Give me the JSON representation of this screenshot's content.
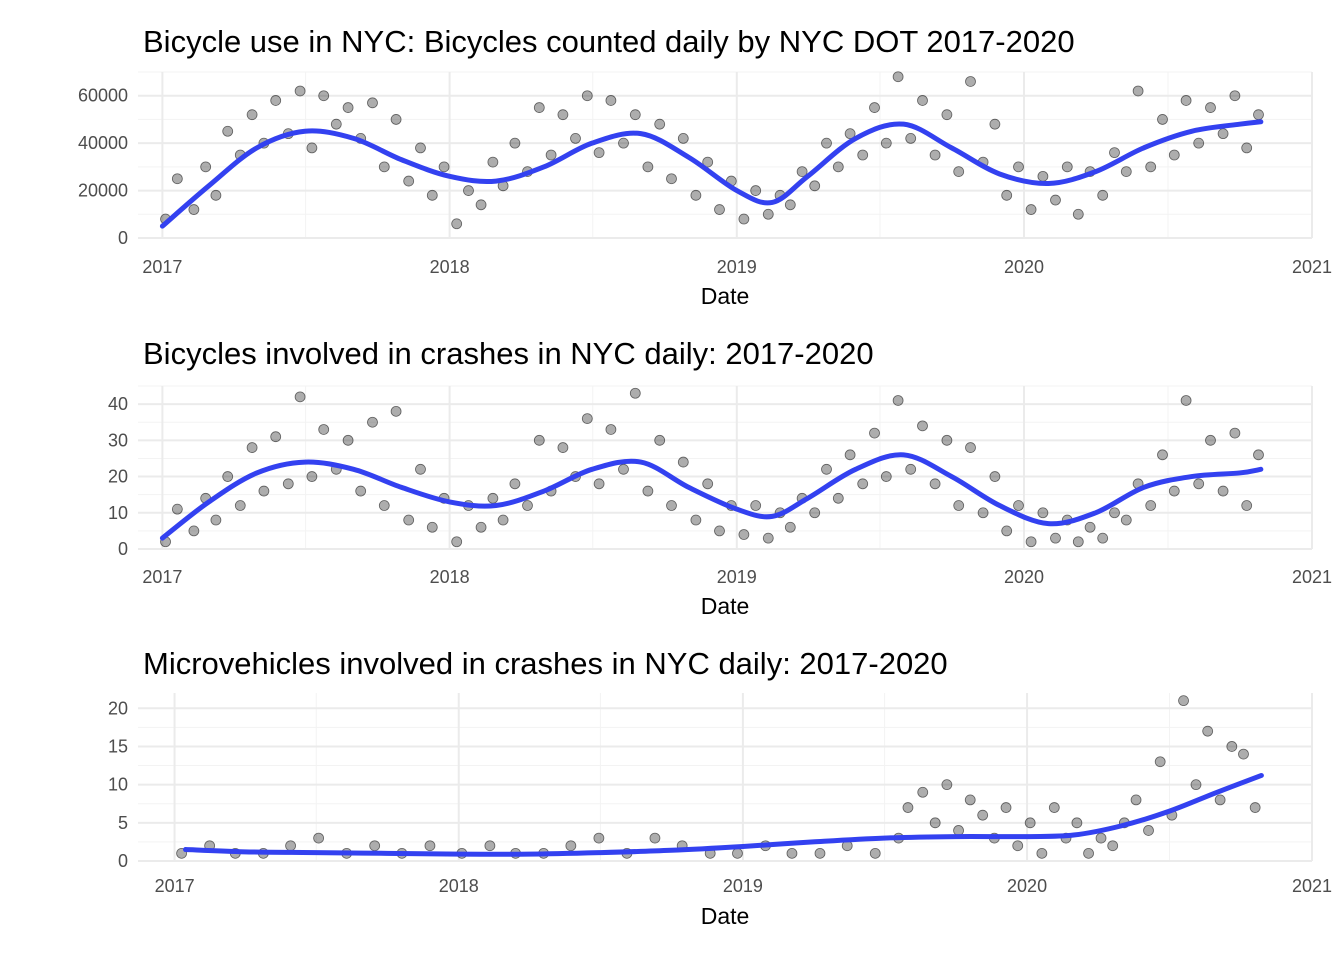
{
  "chart_data": [
    {
      "type": "scatter",
      "title": "Bicycle use in NYC: Bicycles counted daily by NYC DOT 2017-2020",
      "xlabel": "Date",
      "ylabel": "",
      "x_ticks": [
        "2017",
        "2018",
        "2019",
        "2020",
        "2021"
      ],
      "y_ticks": [
        "0",
        "20000",
        "40000",
        "60000"
      ],
      "xlim": [
        "2016-12-01",
        "2021-01-01"
      ],
      "ylim": [
        0,
        70000
      ],
      "point_color": "#000000",
      "smooth_color": "#3341f0",
      "series": [
        {
          "type": "smooth",
          "x": [
            "2017-01-01",
            "2017-03-01",
            "2017-05-01",
            "2017-07-01",
            "2017-09-01",
            "2017-11-01",
            "2018-01-01",
            "2018-03-01",
            "2018-05-01",
            "2018-07-01",
            "2018-09-01",
            "2018-11-01",
            "2019-01-01",
            "2019-02-15",
            "2019-04-01",
            "2019-06-01",
            "2019-08-01",
            "2019-10-01",
            "2019-12-01",
            "2020-02-01",
            "2020-04-01",
            "2020-06-01",
            "2020-08-01",
            "2020-10-01",
            "2020-10-28"
          ],
          "y": [
            5000,
            22000,
            38000,
            45000,
            42000,
            33000,
            26000,
            24000,
            30000,
            40000,
            44000,
            34000,
            20000,
            15000,
            26000,
            42000,
            48000,
            38000,
            27000,
            23000,
            28000,
            38000,
            45000,
            48000,
            49000
          ]
        },
        {
          "type": "scatter",
          "x": [
            "2017-01-05",
            "2017-01-20",
            "2017-02-10",
            "2017-02-25",
            "2017-03-10",
            "2017-03-25",
            "2017-04-10",
            "2017-04-25",
            "2017-05-10",
            "2017-05-25",
            "2017-06-10",
            "2017-06-25",
            "2017-07-10",
            "2017-07-25",
            "2017-08-10",
            "2017-08-25",
            "2017-09-10",
            "2017-09-25",
            "2017-10-10",
            "2017-10-25",
            "2017-11-10",
            "2017-11-25",
            "2017-12-10",
            "2017-12-25",
            "2018-01-10",
            "2018-01-25",
            "2018-02-10",
            "2018-02-25",
            "2018-03-10",
            "2018-03-25",
            "2018-04-10",
            "2018-04-25",
            "2018-05-10",
            "2018-05-25",
            "2018-06-10",
            "2018-06-25",
            "2018-07-10",
            "2018-07-25",
            "2018-08-10",
            "2018-08-25",
            "2018-09-10",
            "2018-09-25",
            "2018-10-10",
            "2018-10-25",
            "2018-11-10",
            "2018-11-25",
            "2018-12-10",
            "2018-12-25",
            "2019-01-10",
            "2019-01-25",
            "2019-02-10",
            "2019-02-25",
            "2019-03-10",
            "2019-03-25",
            "2019-04-10",
            "2019-04-25",
            "2019-05-10",
            "2019-05-25",
            "2019-06-10",
            "2019-06-25",
            "2019-07-10",
            "2019-07-25",
            "2019-08-10",
            "2019-08-25",
            "2019-09-10",
            "2019-09-25",
            "2019-10-10",
            "2019-10-25",
            "2019-11-10",
            "2019-11-25",
            "2019-12-10",
            "2019-12-25",
            "2020-01-10",
            "2020-01-25",
            "2020-02-10",
            "2020-02-25",
            "2020-03-10",
            "2020-03-25",
            "2020-04-10",
            "2020-04-25",
            "2020-05-10",
            "2020-05-25",
            "2020-06-10",
            "2020-06-25",
            "2020-07-10",
            "2020-07-25",
            "2020-08-10",
            "2020-08-25",
            "2020-09-10",
            "2020-09-25",
            "2020-10-10",
            "2020-10-25"
          ],
          "y": [
            8000,
            25000,
            12000,
            30000,
            18000,
            45000,
            35000,
            52000,
            40000,
            58000,
            44000,
            62000,
            38000,
            60000,
            48000,
            55000,
            42000,
            57000,
            30000,
            50000,
            24000,
            38000,
            18000,
            30000,
            6000,
            20000,
            14000,
            32000,
            22000,
            40000,
            28000,
            55000,
            35000,
            52000,
            42000,
            60000,
            36000,
            58000,
            40000,
            52000,
            30000,
            48000,
            25000,
            42000,
            18000,
            32000,
            12000,
            24000,
            8000,
            20000,
            10000,
            18000,
            14000,
            28000,
            22000,
            40000,
            30000,
            44000,
            35000,
            55000,
            40000,
            68000,
            42000,
            58000,
            35000,
            52000,
            28000,
            66000,
            32000,
            48000,
            18000,
            30000,
            12000,
            26000,
            16000,
            30000,
            10000,
            28000,
            18000,
            36000,
            28000,
            62000,
            30000,
            50000,
            35000,
            58000,
            40000,
            55000,
            44000,
            60000,
            38000,
            52000
          ]
        }
      ]
    },
    {
      "type": "scatter",
      "title": "Bicycles involved in crashes in NYC daily: 2017-2020",
      "xlabel": "Date",
      "ylabel": "",
      "x_ticks": [
        "2017",
        "2018",
        "2019",
        "2020",
        "2021"
      ],
      "y_ticks": [
        "0",
        "10",
        "20",
        "30",
        "40"
      ],
      "xlim": [
        "2016-12-01",
        "2021-01-01"
      ],
      "ylim": [
        0,
        45
      ],
      "point_color": "#000000",
      "smooth_color": "#3341f0",
      "series": [
        {
          "type": "smooth",
          "x": [
            "2017-01-01",
            "2017-03-01",
            "2017-05-01",
            "2017-07-01",
            "2017-09-01",
            "2017-11-01",
            "2018-01-01",
            "2018-03-01",
            "2018-05-01",
            "2018-07-01",
            "2018-09-01",
            "2018-11-01",
            "2019-01-01",
            "2019-02-15",
            "2019-04-01",
            "2019-06-01",
            "2019-08-01",
            "2019-10-01",
            "2019-12-01",
            "2020-02-01",
            "2020-04-01",
            "2020-06-01",
            "2020-08-01",
            "2020-10-01",
            "2020-10-28"
          ],
          "y": [
            3,
            13,
            21,
            24,
            22,
            17,
            13,
            12,
            16,
            22,
            24,
            17,
            11,
            9,
            14,
            22,
            26,
            20,
            12,
            7,
            10,
            17,
            20,
            21,
            22
          ]
        },
        {
          "type": "scatter",
          "x": [
            "2017-01-05",
            "2017-01-20",
            "2017-02-10",
            "2017-02-25",
            "2017-03-10",
            "2017-03-25",
            "2017-04-10",
            "2017-04-25",
            "2017-05-10",
            "2017-05-25",
            "2017-06-10",
            "2017-06-25",
            "2017-07-10",
            "2017-07-25",
            "2017-08-10",
            "2017-08-25",
            "2017-09-10",
            "2017-09-25",
            "2017-10-10",
            "2017-10-25",
            "2017-11-10",
            "2017-11-25",
            "2017-12-10",
            "2017-12-25",
            "2018-01-10",
            "2018-01-25",
            "2018-02-10",
            "2018-02-25",
            "2018-03-10",
            "2018-03-25",
            "2018-04-10",
            "2018-04-25",
            "2018-05-10",
            "2018-05-25",
            "2018-06-10",
            "2018-06-25",
            "2018-07-10",
            "2018-07-25",
            "2018-08-10",
            "2018-08-25",
            "2018-09-10",
            "2018-09-25",
            "2018-10-10",
            "2018-10-25",
            "2018-11-10",
            "2018-11-25",
            "2018-12-10",
            "2018-12-25",
            "2019-01-10",
            "2019-01-25",
            "2019-02-10",
            "2019-02-25",
            "2019-03-10",
            "2019-03-25",
            "2019-04-10",
            "2019-04-25",
            "2019-05-10",
            "2019-05-25",
            "2019-06-10",
            "2019-06-25",
            "2019-07-10",
            "2019-07-25",
            "2019-08-10",
            "2019-08-25",
            "2019-09-10",
            "2019-09-25",
            "2019-10-10",
            "2019-10-25",
            "2019-11-10",
            "2019-11-25",
            "2019-12-10",
            "2019-12-25",
            "2020-01-10",
            "2020-01-25",
            "2020-02-10",
            "2020-02-25",
            "2020-03-10",
            "2020-03-25",
            "2020-04-10",
            "2020-04-25",
            "2020-05-10",
            "2020-05-25",
            "2020-06-10",
            "2020-06-25",
            "2020-07-10",
            "2020-07-25",
            "2020-08-10",
            "2020-08-25",
            "2020-09-10",
            "2020-09-25",
            "2020-10-10",
            "2020-10-25"
          ],
          "y": [
            2,
            11,
            5,
            14,
            8,
            20,
            12,
            28,
            16,
            31,
            18,
            42,
            20,
            33,
            22,
            30,
            16,
            35,
            12,
            38,
            8,
            22,
            6,
            14,
            2,
            12,
            6,
            14,
            8,
            18,
            12,
            30,
            16,
            28,
            20,
            36,
            18,
            33,
            22,
            43,
            16,
            30,
            12,
            24,
            8,
            18,
            5,
            12,
            4,
            12,
            3,
            10,
            6,
            14,
            10,
            22,
            14,
            26,
            18,
            32,
            20,
            41,
            22,
            34,
            18,
            30,
            12,
            28,
            10,
            20,
            5,
            12,
            2,
            10,
            3,
            8,
            2,
            6,
            3,
            10,
            8,
            18,
            12,
            26,
            16,
            41,
            18,
            30,
            16,
            32,
            12,
            26
          ]
        }
      ]
    },
    {
      "type": "scatter",
      "title": "Microvehicles involved in crashes in NYC daily: 2017-2020",
      "xlabel": "Date",
      "ylabel": "",
      "x_ticks": [
        "2017",
        "2018",
        "2019",
        "2020",
        "2021"
      ],
      "y_ticks": [
        "0",
        "5",
        "10",
        "15",
        "20"
      ],
      "xlim": [
        "2016-11-15",
        "2021-01-01"
      ],
      "ylim": [
        0,
        22
      ],
      "point_color": "#000000",
      "smooth_color": "#3341f0",
      "series": [
        {
          "type": "smooth",
          "x": [
            "2017-01-15",
            "2017-04-01",
            "2017-07-01",
            "2017-10-01",
            "2018-01-01",
            "2018-04-01",
            "2018-07-01",
            "2018-10-01",
            "2019-01-01",
            "2019-04-01",
            "2019-07-01",
            "2019-10-01",
            "2020-01-01",
            "2020-03-01",
            "2020-05-01",
            "2020-07-01",
            "2020-09-01",
            "2020-10-28"
          ],
          "y": [
            1.5,
            1.2,
            1.1,
            1.0,
            0.9,
            0.9,
            1.1,
            1.4,
            1.9,
            2.5,
            3.0,
            3.2,
            3.2,
            3.4,
            4.6,
            6.5,
            9.0,
            11.2
          ]
        },
        {
          "type": "scatter",
          "x": [
            "2017-01-10",
            "2017-02-15",
            "2017-03-20",
            "2017-04-25",
            "2017-05-30",
            "2017-07-05",
            "2017-08-10",
            "2017-09-15",
            "2017-10-20",
            "2017-11-25",
            "2018-01-05",
            "2018-02-10",
            "2018-03-15",
            "2018-04-20",
            "2018-05-25",
            "2018-06-30",
            "2018-08-05",
            "2018-09-10",
            "2018-10-15",
            "2018-11-20",
            "2018-12-25",
            "2019-01-30",
            "2019-03-05",
            "2019-04-10",
            "2019-05-15",
            "2019-06-20",
            "2019-07-20",
            "2019-08-01",
            "2019-08-20",
            "2019-09-05",
            "2019-09-20",
            "2019-10-05",
            "2019-10-20",
            "2019-11-05",
            "2019-11-20",
            "2019-12-05",
            "2019-12-20",
            "2020-01-05",
            "2020-01-20",
            "2020-02-05",
            "2020-02-20",
            "2020-03-05",
            "2020-03-20",
            "2020-04-05",
            "2020-04-20",
            "2020-05-05",
            "2020-05-20",
            "2020-06-05",
            "2020-06-20",
            "2020-07-05",
            "2020-07-20",
            "2020-08-05",
            "2020-08-20",
            "2020-09-05",
            "2020-09-20",
            "2020-10-05",
            "2020-10-20"
          ],
          "y": [
            1,
            2,
            1,
            1,
            2,
            3,
            1,
            2,
            1,
            2,
            1,
            2,
            1,
            1,
            2,
            3,
            1,
            3,
            2,
            1,
            1,
            2,
            1,
            1,
            2,
            1,
            3,
            7,
            9,
            5,
            10,
            4,
            8,
            6,
            3,
            7,
            2,
            5,
            1,
            7,
            3,
            5,
            1,
            3,
            2,
            5,
            8,
            4,
            13,
            6,
            21,
            10,
            17,
            8,
            15,
            14,
            7
          ]
        }
      ]
    }
  ]
}
